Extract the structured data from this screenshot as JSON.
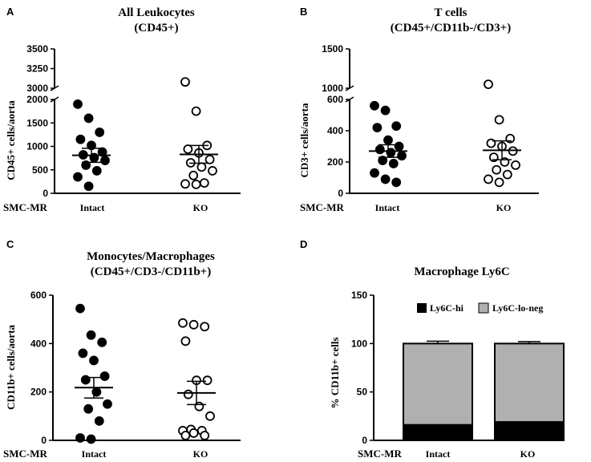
{
  "group_label": "SMC-MR",
  "chart_data": [
    {
      "panel": "A",
      "type": "scatter",
      "title_lines": [
        "All Leukocytes",
        "(CD45+)"
      ],
      "ylabel": "CD45+ cells/aorta",
      "categories": [
        "Intact",
        "KO"
      ],
      "axis_segments": [
        {
          "range": [
            0,
            2000
          ],
          "ticks": [
            0,
            500,
            1000,
            1500,
            2000
          ]
        },
        {
          "range": [
            3000,
            3500
          ],
          "ticks": [
            3000,
            3250,
            3500
          ]
        }
      ],
      "series": [
        {
          "name": "Intact",
          "marker": "filled",
          "values": [
            1900,
            1600,
            1300,
            1150,
            1020,
            880,
            820,
            760,
            700,
            600,
            480,
            350,
            150
          ],
          "mean": 810,
          "sem_low": 660,
          "sem_high": 960
        },
        {
          "name": "KO",
          "marker": "open",
          "values": [
            3080,
            1750,
            1020,
            940,
            860,
            720,
            650,
            560,
            480,
            380,
            220,
            200,
            190
          ],
          "mean": 830,
          "sem_low": 640,
          "sem_high": 1020
        }
      ]
    },
    {
      "panel": "B",
      "type": "scatter",
      "title_lines": [
        "T cells",
        "(CD45+/CD11b-/CD3+)"
      ],
      "ylabel": "CD3+ cells/aorta",
      "categories": [
        "Intact",
        "KO"
      ],
      "axis_segments": [
        {
          "range": [
            0,
            600
          ],
          "ticks": [
            0,
            200,
            400,
            600
          ]
        },
        {
          "range": [
            1000,
            1500
          ],
          "ticks": [
            1000,
            1500
          ]
        }
      ],
      "series": [
        {
          "name": "Intact",
          "marker": "filled",
          "values": [
            560,
            530,
            430,
            420,
            340,
            300,
            280,
            260,
            240,
            210,
            190,
            130,
            90,
            70
          ],
          "mean": 270,
          "sem_low": 230,
          "sem_high": 310
        },
        {
          "name": "KO",
          "marker": "open",
          "values": [
            1050,
            470,
            350,
            320,
            300,
            270,
            230,
            200,
            180,
            150,
            120,
            90,
            70
          ],
          "mean": 275,
          "sem_low": 215,
          "sem_high": 335
        }
      ]
    },
    {
      "panel": "C",
      "type": "scatter",
      "title_lines": [
        "Monocytes/Macrophages",
        "(CD45+/CD3-/CD11b+)"
      ],
      "ylabel": "CD11b+ cells/aorta",
      "categories": [
        "Intact",
        "KO"
      ],
      "ylim": [
        0,
        600
      ],
      "ticks": [
        0,
        200,
        400,
        600
      ],
      "series": [
        {
          "name": "Intact",
          "marker": "filled",
          "values": [
            545,
            435,
            405,
            360,
            330,
            265,
            250,
            200,
            150,
            130,
            80,
            10,
            5
          ],
          "mean": 218,
          "sem_low": 175,
          "sem_high": 260
        },
        {
          "name": "KO",
          "marker": "open",
          "values": [
            485,
            478,
            470,
            410,
            248,
            248,
            190,
            140,
            100,
            45,
            40,
            40,
            30,
            20,
            20
          ],
          "mean": 196,
          "sem_low": 148,
          "sem_high": 244
        }
      ]
    },
    {
      "panel": "D",
      "type": "bar",
      "stacked": true,
      "title": "Macrophage Ly6C",
      "ylabel": "% CD11b+ cells",
      "categories": [
        "Intact",
        "KO"
      ],
      "ylim": [
        0,
        150
      ],
      "ticks": [
        0,
        50,
        100,
        150
      ],
      "series": [
        {
          "name": "Ly6C-hi",
          "color": "#000000",
          "values": [
            16,
            19
          ],
          "errors": [
            2.5,
            2.5
          ]
        },
        {
          "name": "Ly6C-lo-neg",
          "color": "#b0b0b0",
          "values": [
            84,
            81
          ],
          "errors": [
            2.5,
            2
          ]
        }
      ],
      "legend_position": "top"
    }
  ]
}
